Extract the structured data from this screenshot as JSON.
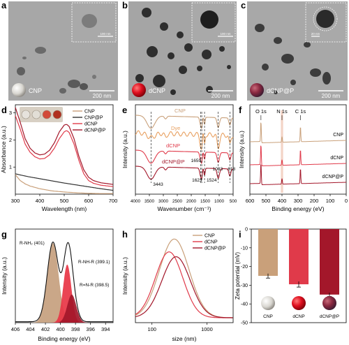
{
  "panels": {
    "a": {
      "letter": "a",
      "label": "CNP",
      "scale": "200 nm",
      "inset_scale": "100 nm"
    },
    "b": {
      "letter": "b",
      "label": "dCNP",
      "scale": "200 nm",
      "inset_scale": "100 nm"
    },
    "c": {
      "letter": "c",
      "label": "dCNP@P",
      "scale": "200 nm",
      "inset_scale": "20 nm"
    }
  },
  "colors": {
    "CNP": "#c9a07a",
    "CNP@P": "#333333",
    "dCNP": "#e03a4a",
    "dCNP@P": "#a3172a",
    "Dye": "#e8a060",
    "tem_bg": "#a5a5a5"
  },
  "chart_data": [
    {
      "id": "d",
      "type": "line",
      "xlabel": "Wavelength (nm)",
      "ylabel": "Absorbance (a.u.)",
      "xlim": [
        300,
        700
      ],
      "ylim": [
        0,
        3.3
      ],
      "xticks": [
        300,
        400,
        500,
        600,
        700
      ],
      "yticks": [
        1,
        2,
        3
      ],
      "legend": [
        "CNP",
        "CNP@P",
        "dCNP",
        "dCNP@P"
      ],
      "series": [
        {
          "name": "CNP",
          "x": [
            300,
            320,
            340,
            360,
            400,
            450,
            500,
            550,
            600,
            650,
            700
          ],
          "y": [
            0.72,
            0.5,
            0.38,
            0.3,
            0.2,
            0.12,
            0.08,
            0.05,
            0.03,
            0.02,
            0.02
          ]
        },
        {
          "name": "CNP@P",
          "x": [
            300,
            350,
            400,
            450,
            500,
            550,
            600,
            650,
            700
          ],
          "y": [
            0.75,
            0.65,
            0.57,
            0.49,
            0.41,
            0.34,
            0.27,
            0.2,
            0.14
          ]
        },
        {
          "name": "dCNP",
          "x": [
            300,
            320,
            340,
            360,
            380,
            400,
            420,
            440,
            460,
            480,
            500,
            510,
            520,
            540,
            560,
            580,
            600,
            620,
            650,
            700
          ],
          "y": [
            2.9,
            2.4,
            1.85,
            1.55,
            1.38,
            1.3,
            1.32,
            1.45,
            1.7,
            2.05,
            2.3,
            2.35,
            2.28,
            1.85,
            1.25,
            0.75,
            0.5,
            0.4,
            0.33,
            0.28
          ]
        },
        {
          "name": "dCNP@P",
          "x": [
            300,
            320,
            340,
            360,
            380,
            400,
            420,
            440,
            460,
            480,
            500,
            510,
            520,
            540,
            560,
            580,
            600,
            620,
            650,
            700
          ],
          "y": [
            3.2,
            2.65,
            2.05,
            1.7,
            1.52,
            1.45,
            1.48,
            1.62,
            1.9,
            2.3,
            2.55,
            2.58,
            2.5,
            2.05,
            1.4,
            0.9,
            0.62,
            0.5,
            0.42,
            0.36
          ]
        }
      ]
    },
    {
      "id": "e",
      "type": "line",
      "xlabel": "Wavenumber (cm⁻¹)",
      "ylabel": "Intensity (a.u.)",
      "xlim": [
        4000,
        500
      ],
      "xticks": [
        4000,
        3500,
        3000,
        2500,
        2000,
        1500,
        1000,
        500
      ],
      "series_labels": [
        "CNP",
        "Dye",
        "dCNP",
        "dCNP@P"
      ],
      "annotations": [
        "3443",
        "1659",
        "1623",
        "1524",
        "1033",
        "618"
      ],
      "annotation_x": [
        3443,
        1659,
        1623,
        1524,
        1033,
        618
      ]
    },
    {
      "id": "f",
      "type": "line",
      "xlabel": "Binding energy (eV)",
      "ylabel": "Intensity (a.u.)",
      "xlim": [
        600,
        0
      ],
      "xticks": [
        600,
        500,
        400,
        300,
        200,
        100,
        0
      ],
      "series_labels": [
        "CNP",
        "dCNP",
        "dCNP@P"
      ],
      "peaks": [
        "O 1s",
        "N 1s",
        "C 1s"
      ],
      "peak_x": [
        531,
        400,
        285
      ]
    },
    {
      "id": "g",
      "type": "area",
      "xlabel": "Binding energy (eV)",
      "ylabel": "Intensity (a.u.)",
      "xlim": [
        406,
        393
      ],
      "xticks": [
        406,
        404,
        402,
        400,
        398,
        396,
        394
      ],
      "components": [
        {
          "name": "R-NH₂ (401)",
          "center": 401,
          "height": 0.85,
          "sigma": 0.75
        },
        {
          "name": "R-NH-R (399.1)",
          "center": 399.1,
          "height": 0.62,
          "sigma": 0.55
        },
        {
          "name": "R=N-R (398.5)",
          "center": 398.5,
          "height": 0.3,
          "sigma": 0.6
        }
      ]
    },
    {
      "id": "h",
      "type": "line",
      "xlabel": "size (nm)",
      "ylabel": "Intensity (a.u.)",
      "xscale": "log",
      "xlim": [
        50,
        3000
      ],
      "xticks": [
        100,
        1000
      ],
      "legend": [
        "CNP",
        "dCNP",
        "dCNP@P"
      ],
      "series": [
        {
          "name": "CNP",
          "center": 255,
          "width": 0.27
        },
        {
          "name": "dCNP",
          "center": 205,
          "width": 0.25
        },
        {
          "name": "dCNP@P",
          "center": 275,
          "width": 0.26
        }
      ]
    },
    {
      "id": "i",
      "type": "bar",
      "ylabel": "Zeta potential (mV)",
      "ylim": [
        -50,
        0
      ],
      "yticks": [
        0,
        -10,
        -20,
        -30,
        -40,
        -50
      ],
      "categories": [
        "CNP",
        "dCNP",
        "dCNP@P"
      ],
      "values": [
        -25,
        -29.5,
        -35
      ],
      "errors": [
        1.2,
        1.5,
        1.0
      ]
    }
  ]
}
